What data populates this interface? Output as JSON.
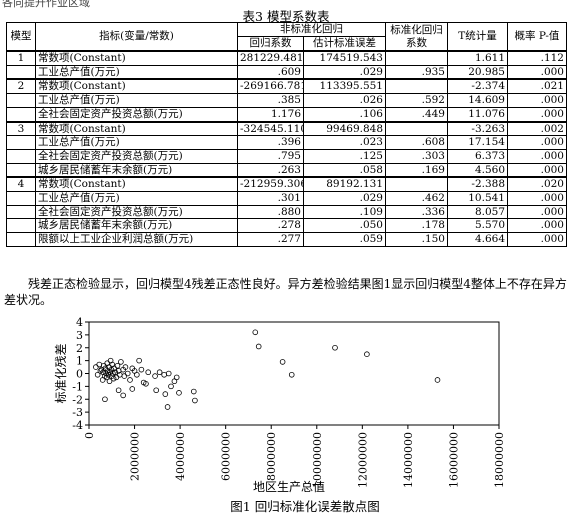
{
  "fragment_top": "各向提升作业区域",
  "table": {
    "title": "表3  模型系数表",
    "headers": {
      "model": "模型",
      "indicator": "指标(变量/常数)",
      "unstd": "非标准化回归",
      "coef": "回归系数",
      "se": "估计标准误差",
      "std": "标准化回归系数",
      "t": "T统计量",
      "p": "概率 P-值"
    },
    "rows": [
      {
        "model": "1",
        "var": "常数项(Constant)",
        "b": "281229.481",
        "se": "174519.543",
        "beta": "",
        "t": "1.611",
        "p": ".112",
        "grp": true
      },
      {
        "model": "",
        "var": "工业总产值(万元)",
        "b": ".609",
        "se": ".029",
        "beta": ".935",
        "t": "20.985",
        "p": ".000"
      },
      {
        "model": "2",
        "var": "常数项(Constant)",
        "b": "-269166.781",
        "se": "113395.551",
        "beta": "",
        "t": "-2.374",
        "p": ".021",
        "grp": true
      },
      {
        "model": "",
        "var": "工业总产值(万元)",
        "b": ".385",
        "se": ".026",
        "beta": ".592",
        "t": "14.609",
        "p": ".000"
      },
      {
        "model": "",
        "var": "全社会固定资产投资总额(万元)",
        "b": "1.176",
        "se": ".106",
        "beta": ".449",
        "t": "11.076",
        "p": ".000"
      },
      {
        "model": "3",
        "var": "常数项(Constant)",
        "b": "-324545.110",
        "se": "99469.848",
        "beta": "",
        "t": "-3.263",
        "p": ".002",
        "grp": true
      },
      {
        "model": "",
        "var": "工业总产值(万元)",
        "b": ".396",
        "se": ".023",
        "beta": ".608",
        "t": "17.154",
        "p": ".000"
      },
      {
        "model": "",
        "var": "全社会固定资产投资总额(万元)",
        "b": ".795",
        "se": ".125",
        "beta": ".303",
        "t": "6.373",
        "p": ".000"
      },
      {
        "model": "",
        "var": "城乡居民储蓄年末余额(万元)",
        "b": ".263",
        "se": ".058",
        "beta": ".169",
        "t": "4.560",
        "p": ".000"
      },
      {
        "model": "4",
        "var": "常数项(Constant)",
        "b": "-212959.306",
        "se": "89192.131",
        "beta": "",
        "t": "-2.388",
        "p": ".020",
        "grp": true
      },
      {
        "model": "",
        "var": "工业总产值(万元)",
        "b": ".301",
        "se": ".029",
        "beta": ".462",
        "t": "10.541",
        "p": ".000"
      },
      {
        "model": "",
        "var": "全社会固定资产投资总额(万元)",
        "b": ".880",
        "se": ".109",
        "beta": ".336",
        "t": "8.057",
        "p": ".000"
      },
      {
        "model": "",
        "var": "城乡居民储蓄年末余额(万元)",
        "b": ".278",
        "se": ".050",
        "beta": ".178",
        "t": "5.570",
        "p": ".000"
      },
      {
        "model": "",
        "var": "限额以上工业企业利润总额(万元)",
        "b": ".277",
        "se": ".059",
        "beta": ".150",
        "t": "4.664",
        "p": ".000"
      }
    ]
  },
  "paragraph": "残差正态检验显示，回归模型4残差正态性良好。异方差检验结果图1显示回归模型4整体上不存在异方差状况。",
  "chart_data": {
    "type": "scatter",
    "title": "",
    "xlabel": "地区生产总值",
    "ylabel": "标准化残差",
    "xlim": [
      0,
      18000000
    ],
    "ylim": [
      -4,
      4
    ],
    "xticks": [
      "0",
      "2000000",
      "4000000",
      "6000000",
      "8000000",
      "10000000",
      "12000000",
      "14000000",
      "16000000",
      "18000000"
    ],
    "yticks": [
      "4",
      "3",
      "2",
      "1",
      "0",
      "-1",
      "-2",
      "-3",
      "-4"
    ],
    "grid": false,
    "points": [
      [
        300000,
        0.5
      ],
      [
        380000,
        -0.1
      ],
      [
        450000,
        0.7
      ],
      [
        500000,
        0.2
      ],
      [
        550000,
        0.3
      ],
      [
        600000,
        -0.5
      ],
      [
        620000,
        0.1
      ],
      [
        650000,
        0.6
      ],
      [
        700000,
        -0.2
      ],
      [
        720000,
        0.4
      ],
      [
        750000,
        0.0
      ],
      [
        780000,
        -0.3
      ],
      [
        800000,
        0.8
      ],
      [
        820000,
        0.2
      ],
      [
        850000,
        -0.1
      ],
      [
        880000,
        0.5
      ],
      [
        900000,
        -0.6
      ],
      [
        920000,
        0.1
      ],
      [
        950000,
        1.0
      ],
      [
        980000,
        0.3
      ],
      [
        1000000,
        -0.2
      ],
      [
        1020000,
        0.7
      ],
      [
        1050000,
        0.0
      ],
      [
        1080000,
        -0.4
      ],
      [
        1100000,
        0.4
      ],
      [
        1150000,
        0.1
      ],
      [
        1200000,
        -0.3
      ],
      [
        1250000,
        0.6
      ],
      [
        1300000,
        0.2
      ],
      [
        1350000,
        -0.1
      ],
      [
        1400000,
        0.9
      ],
      [
        1500000,
        0.3
      ],
      [
        1550000,
        -0.2
      ],
      [
        1600000,
        0.5
      ],
      [
        1700000,
        0.0
      ],
      [
        1800000,
        -0.5
      ],
      [
        1900000,
        0.4
      ],
      [
        2000000,
        0.2
      ],
      [
        2100000,
        -0.1
      ],
      [
        2200000,
        1.0
      ],
      [
        2300000,
        0.3
      ],
      [
        2400000,
        -0.7
      ],
      [
        2500000,
        -0.8
      ],
      [
        2600000,
        0.1
      ],
      [
        700000,
        -2.0
      ],
      [
        1300000,
        -1.3
      ],
      [
        1500000,
        -1.7
      ],
      [
        1900000,
        -1.2
      ],
      [
        2900000,
        -0.2
      ],
      [
        3100000,
        0.1
      ],
      [
        3300000,
        -0.1
      ],
      [
        3500000,
        0.0
      ],
      [
        3600000,
        -1.0
      ],
      [
        3750000,
        -0.6
      ],
      [
        3850000,
        -0.3
      ],
      [
        2950000,
        -1.3
      ],
      [
        3350000,
        -1.6
      ],
      [
        3950000,
        -1.5
      ],
      [
        4600000,
        -1.4
      ],
      [
        4650000,
        -2.1
      ],
      [
        3450000,
        -2.6
      ],
      [
        7300000,
        3.2
      ],
      [
        7450000,
        2.1
      ],
      [
        8500000,
        0.9
      ],
      [
        8900000,
        -0.1
      ],
      [
        10800000,
        2.0
      ],
      [
        12200000,
        1.5
      ],
      [
        15300000,
        -0.5
      ]
    ]
  },
  "figure_caption": "图1  回归标准化误差散点图"
}
